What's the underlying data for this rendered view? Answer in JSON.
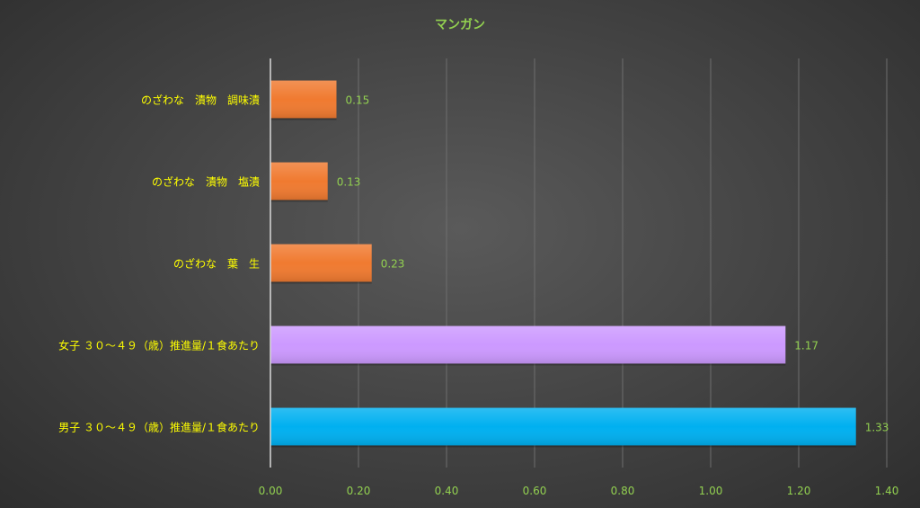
{
  "chart_data": {
    "type": "bar",
    "orientation": "horizontal",
    "title": "マンガン",
    "categories": [
      "のざわな　漬物　調味漬",
      "のざわな　漬物　塩漬",
      "のざわな　葉　生",
      "女子 ３０～４９（歳）推進量/１食あたり",
      "男子 ３０～４９（歳）推進量/１食あたり"
    ],
    "values": [
      0.15,
      0.13,
      0.23,
      1.17,
      1.33
    ],
    "value_labels": [
      "0.15",
      "0.13",
      "0.23",
      "1.17",
      "1.33"
    ],
    "bar_colors": [
      "#F07A30",
      "#F07A30",
      "#F07A30",
      "#CC99FF",
      "#00B0F0"
    ],
    "xlim": [
      0,
      1.4
    ],
    "x_ticks": [
      0,
      0.2,
      0.4,
      0.6,
      0.8,
      1.0,
      1.2,
      1.4
    ],
    "x_tick_labels": [
      "0.00",
      "0.20",
      "0.40",
      "0.60",
      "0.80",
      "1.00",
      "1.20",
      "1.40"
    ],
    "grid": true,
    "legend": "none",
    "colors": {
      "title": "#92D050",
      "tick_labels": "#92D050",
      "data_labels": "#92D050",
      "category_labels": "#FFFF00",
      "gridlines": "#6e6e6e",
      "axis": "#d9d9d9"
    }
  }
}
